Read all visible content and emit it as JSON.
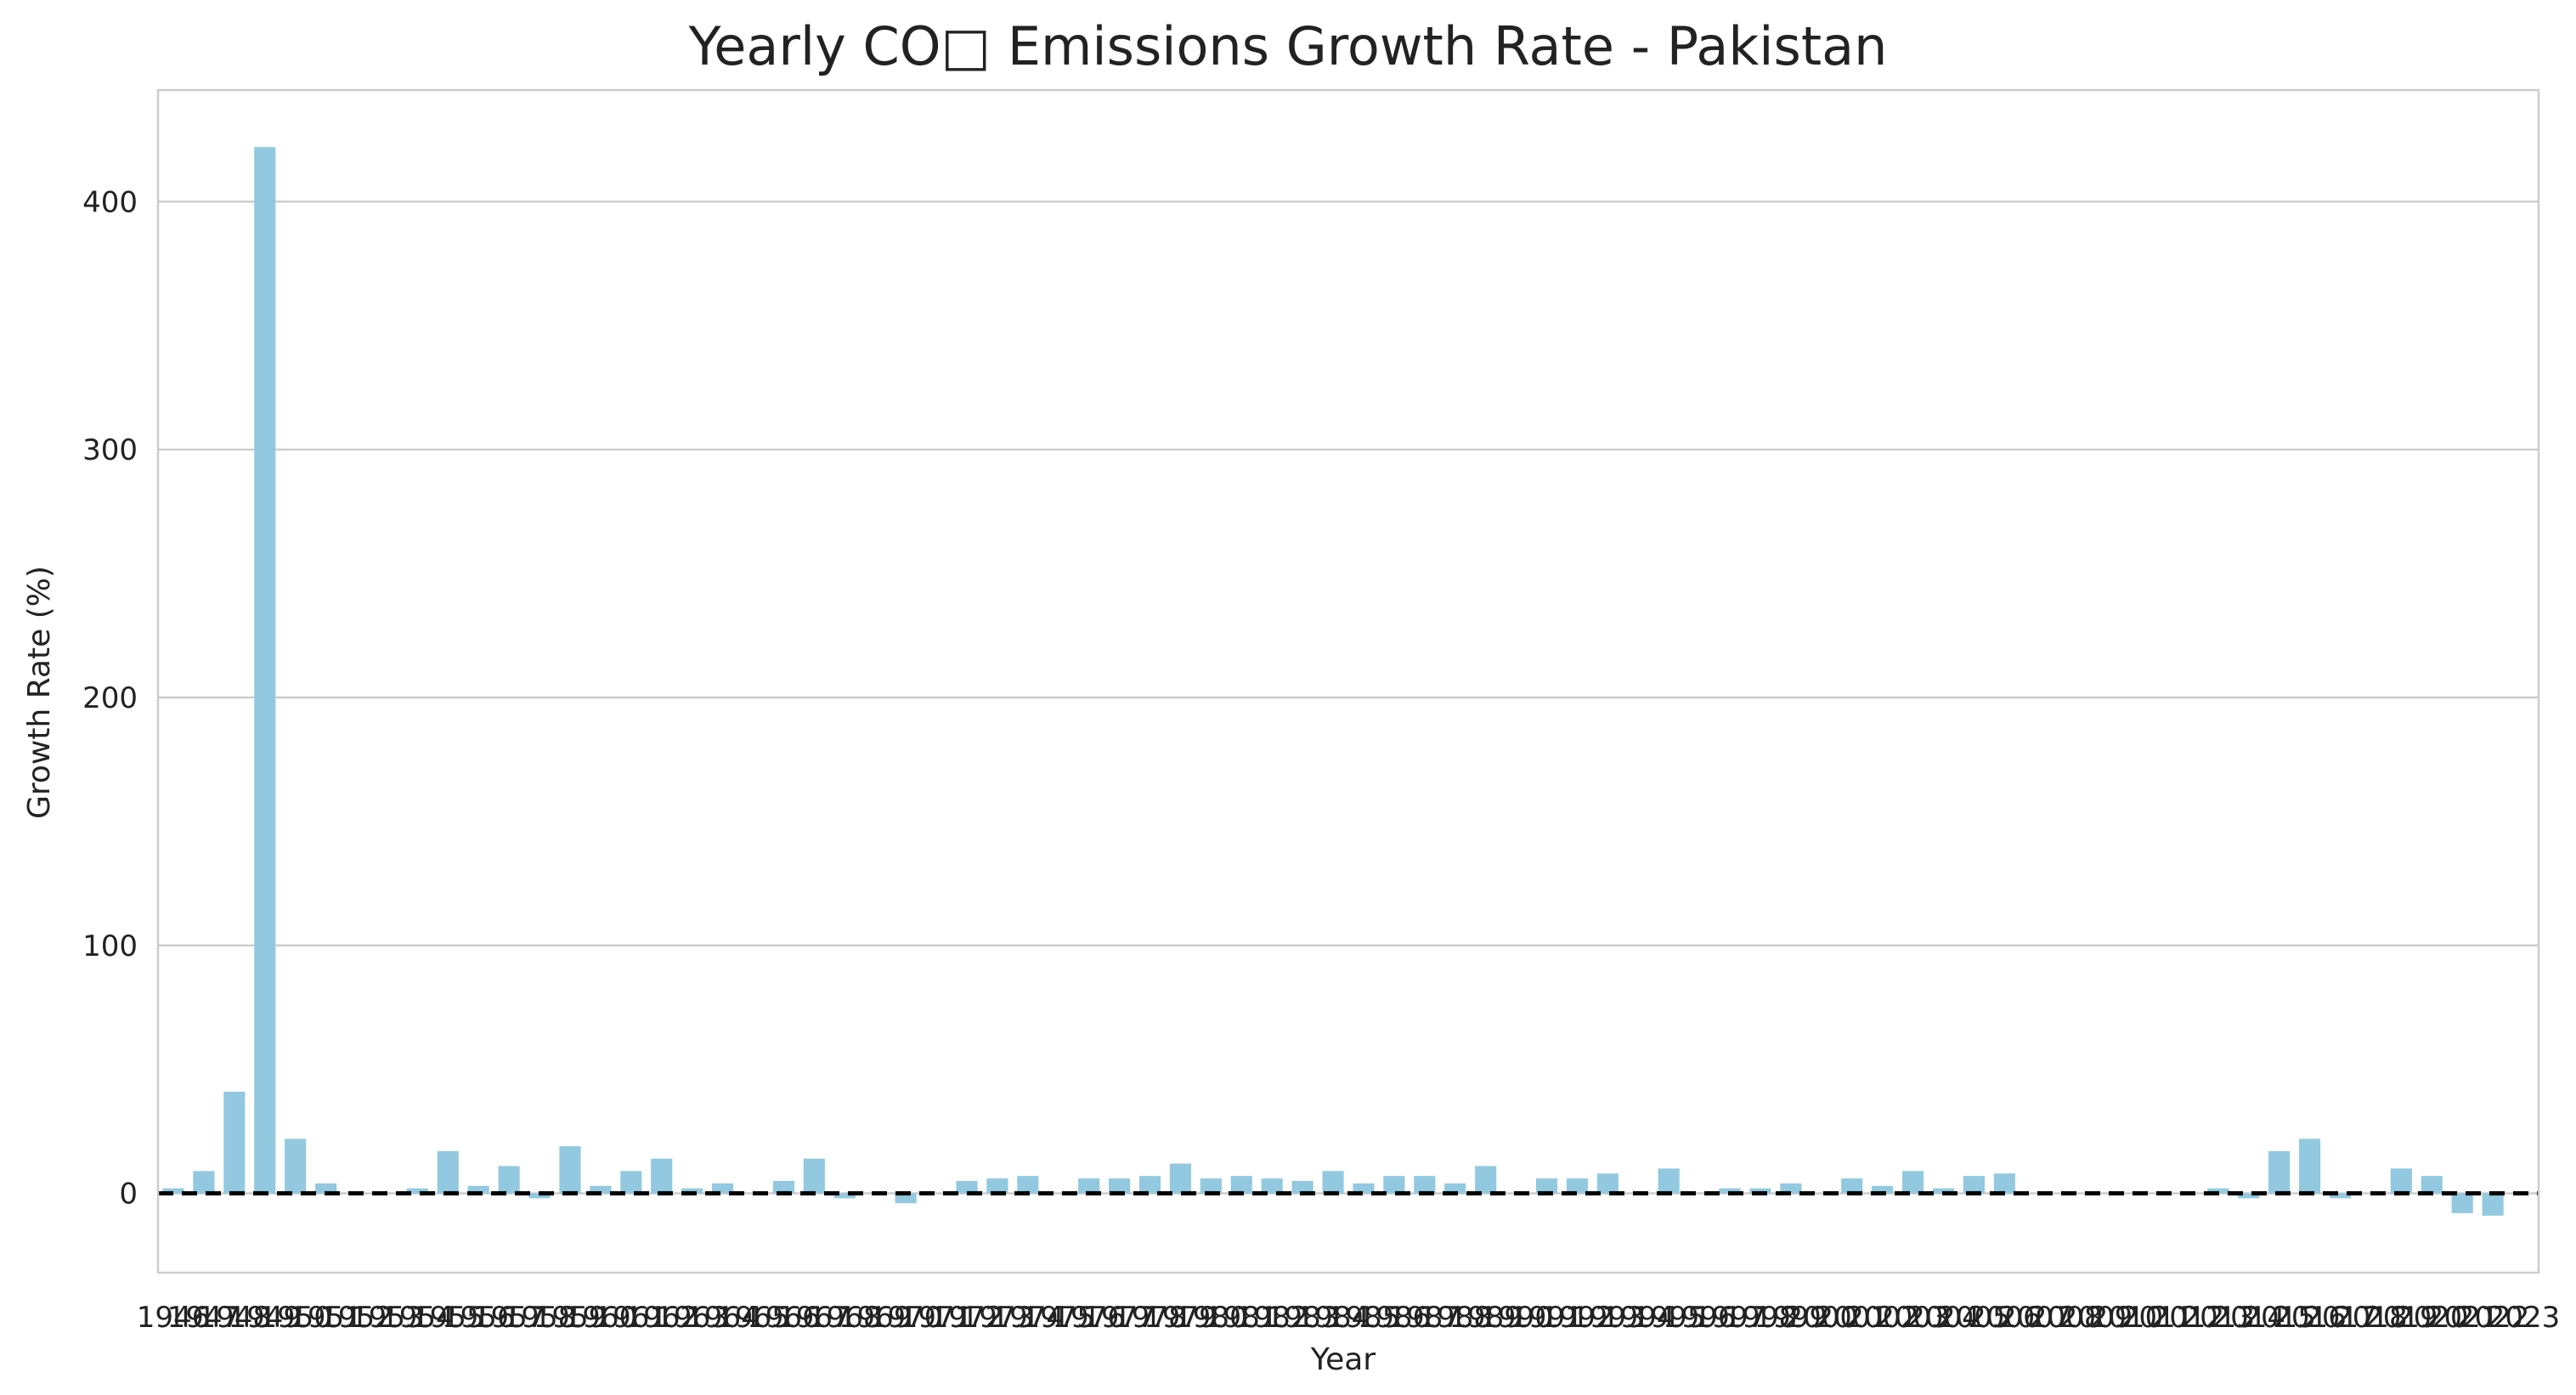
{
  "chart_data": {
    "type": "bar",
    "title": "Yearly CO□ Emissions Growth Rate - Pakistan",
    "xlabel": "Year",
    "ylabel": "Growth Rate (%)",
    "ylim": [
      -32,
      445
    ],
    "yticks": [
      0,
      100,
      200,
      300,
      400
    ],
    "grid": "horizontal",
    "reference_line": {
      "y": 0,
      "style": "dashed",
      "color": "#000000"
    },
    "bar_color": "#92c9e0",
    "categories": [
      "1946",
      "1947",
      "1948",
      "1949",
      "1950",
      "1951",
      "1952",
      "1953",
      "1954",
      "1955",
      "1956",
      "1957",
      "1958",
      "1959",
      "1960",
      "1961",
      "1962",
      "1963",
      "1964",
      "1965",
      "1966",
      "1967",
      "1968",
      "1969",
      "1970",
      "1971",
      "1972",
      "1973",
      "1974",
      "1975",
      "1976",
      "1977",
      "1978",
      "1979",
      "1980",
      "1981",
      "1982",
      "1983",
      "1984",
      "1985",
      "1986",
      "1987",
      "1988",
      "1989",
      "1990",
      "1991",
      "1992",
      "1993",
      "1994",
      "1995",
      "1996",
      "1997",
      "1998",
      "1999",
      "2000",
      "2001",
      "2002",
      "2003",
      "2004",
      "2005",
      "2006",
      "2007",
      "2008",
      "2009",
      "2010",
      "2011",
      "2012",
      "2013",
      "2014",
      "2015",
      "2016",
      "2017",
      "2018",
      "2019",
      "2020",
      "2021",
      "2022",
      "2023"
    ],
    "values": [
      2,
      9,
      41,
      422,
      22,
      4,
      0,
      0,
      2,
      17,
      3,
      11,
      -2,
      19,
      3,
      9,
      14,
      2,
      4,
      0,
      5,
      14,
      -2,
      0,
      -4,
      0,
      5,
      6,
      7,
      0,
      6,
      6,
      7,
      12,
      6,
      7,
      6,
      5,
      9,
      4,
      7,
      7,
      4,
      11,
      0,
      6,
      6,
      8,
      0,
      10,
      0,
      2,
      2,
      4,
      0,
      6,
      3,
      9,
      2,
      7,
      8,
      0,
      0,
      0,
      0,
      0,
      0,
      2,
      -2,
      17,
      22,
      -2,
      0,
      10,
      7,
      -8,
      -9,
      0
    ],
    "xtick_labels": [
      "1946",
      "1947",
      "1948",
      "1949",
      "1950",
      "1951",
      "1952",
      "1953",
      "1954",
      "1955",
      "1956",
      "1957",
      "1958",
      "1959",
      "1960",
      "1961",
      "1962",
      "1963",
      "1964",
      "1965",
      "1966",
      "1967",
      "1968",
      "1969",
      "1970",
      "1971",
      "1972",
      "1973",
      "1974",
      "1975",
      "1976",
      "1977",
      "1978",
      "1979",
      "1980",
      "1981",
      "1982",
      "1983",
      "1984",
      "1985",
      "1986",
      "1987",
      "1988",
      "1989",
      "1990",
      "1991",
      "1992",
      "1993",
      "1994",
      "1995",
      "1996",
      "1997",
      "1998",
      "1999",
      "2000",
      "2001",
      "2002",
      "2003",
      "2004",
      "2005",
      "2006",
      "2007",
      "2008",
      "2009",
      "2010",
      "2011",
      "2012",
      "2013",
      "2014",
      "2015",
      "2016",
      "2017",
      "2018",
      "2019",
      "2020",
      "2021",
      "2022",
      "2023"
    ]
  }
}
